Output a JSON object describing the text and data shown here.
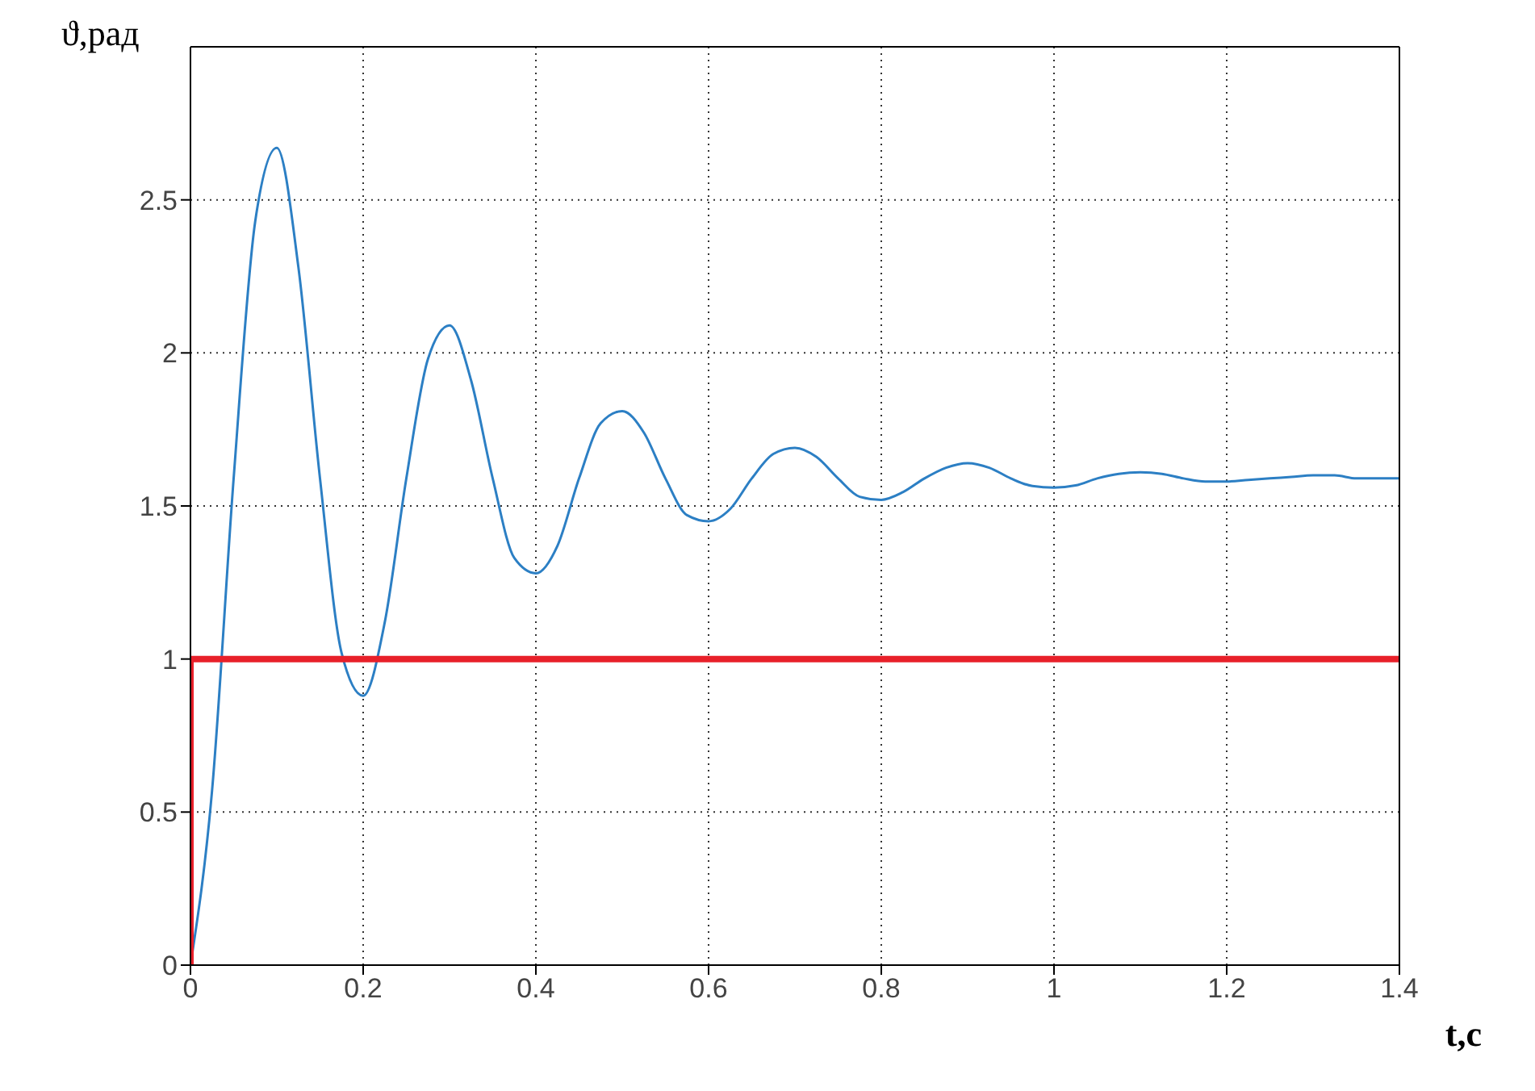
{
  "chart_data": {
    "type": "line",
    "xlabel": "t,c",
    "ylabel": "ϑ,рад",
    "xlim": [
      0,
      1.4
    ],
    "xticks": [
      0,
      0.2,
      0.4,
      0.6,
      0.8,
      1,
      1.2,
      1.4
    ],
    "ylim": [
      0,
      3
    ],
    "yticks": [
      0,
      0.5,
      1,
      1.5,
      2,
      2.5
    ],
    "grid": true,
    "series": [
      {
        "color": "#2c7fc4",
        "x": [
          0,
          0.025,
          0.05,
          0.075,
          0.1,
          0.125,
          0.15,
          0.175,
          0.2,
          0.225,
          0.25,
          0.275,
          0.3,
          0.325,
          0.35,
          0.375,
          0.4,
          0.425,
          0.45,
          0.475,
          0.5,
          0.525,
          0.55,
          0.575,
          0.6,
          0.625,
          0.65,
          0.675,
          0.7,
          0.725,
          0.75,
          0.775,
          0.8,
          0.825,
          0.85,
          0.875,
          0.9,
          0.925,
          0.95,
          0.975,
          1,
          1.025,
          1.05,
          1.075,
          1.1,
          1.125,
          1.15,
          1.175,
          1.2,
          1.225,
          1.25,
          1.275,
          1.3,
          1.325,
          1.35,
          1.375,
          1.4
        ],
        "values": [
          0,
          0.57,
          1.59,
          2.43,
          2.67,
          2.28,
          1.59,
          1.02,
          0.88,
          1.12,
          1.59,
          1.98,
          2.09,
          1.91,
          1.59,
          1.33,
          1.28,
          1.37,
          1.59,
          1.77,
          1.81,
          1.74,
          1.59,
          1.47,
          1.45,
          1.49,
          1.59,
          1.67,
          1.69,
          1.66,
          1.59,
          1.53,
          1.52,
          1.545,
          1.59,
          1.625,
          1.64,
          1.625,
          1.59,
          1.565,
          1.56,
          1.567,
          1.59,
          1.605,
          1.61,
          1.605,
          1.59,
          1.58,
          1.58,
          1.585,
          1.59,
          1.595,
          1.6,
          1.6,
          1.59,
          1.59,
          1.59
        ]
      },
      {
        "type": "step",
        "color": "#e8202a",
        "x": [
          0,
          0,
          1.4
        ],
        "values": [
          0,
          1,
          1
        ]
      }
    ]
  }
}
